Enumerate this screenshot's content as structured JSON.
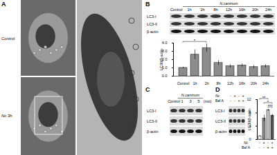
{
  "panels": {
    "A": {
      "letter": "A",
      "labels": [
        "Control",
        "Nc 3h"
      ]
    },
    "B": {
      "letter": "B",
      "blot": {
        "group_label": "N.caninum",
        "lanes": [
          "Control",
          "1h",
          "2h",
          "8h",
          "12h",
          "16h",
          "20h",
          "24h"
        ],
        "rows": [
          "LC3-I",
          "LC3-II",
          "β-actin"
        ]
      }
    },
    "C": {
      "letter": "C",
      "blot": {
        "group_label": "N.caninum",
        "lanes": [
          "Control",
          "1",
          "3",
          "5"
        ],
        "unit": "(moi)",
        "rows": [
          "LC3-I",
          "LC3-II",
          "β-actin"
        ]
      }
    },
    "D": {
      "letter": "D",
      "blot": {
        "conditions": [
          {
            "name": "Nc",
            "labels": [
              "-",
              "+",
              "-",
              "+"
            ]
          },
          {
            "name": "Baf A",
            "labels": [
              "-",
              "-",
              "+",
              "+"
            ]
          }
        ],
        "rows": [
          "LC3-I",
          "LC3-II",
          "β-actin"
        ]
      }
    }
  },
  "chart_data": [
    {
      "type": "bar",
      "panel": "B",
      "y_label": "LC3II/β-actin",
      "categories": [
        "Control",
        "1h",
        "2h",
        "8h",
        "12h",
        "16h",
        "20h",
        "24h"
      ],
      "values": [
        1,
        2.6,
        3.4,
        1.6,
        1.2,
        1.3,
        1.1,
        1.2
      ],
      "errors": [
        0.1,
        0.6,
        0.5,
        0.3,
        0.2,
        0.2,
        0.2,
        0.2
      ],
      "color": "#8c8c8c",
      "ylim": [
        0,
        4
      ],
      "yticks": [
        0,
        1,
        2,
        3,
        4
      ],
      "annotations": [
        {
          "text": "*",
          "from": 0,
          "to": 2
        }
      ]
    },
    {
      "type": "bar",
      "panel": "D",
      "y_label": "LC3II/β-actin",
      "categories": [
        null,
        null,
        null,
        null
      ],
      "conditions": [
        {
          "name": "Nc",
          "labels": [
            "-",
            "+",
            "-",
            "+"
          ]
        },
        {
          "name": "Baf A",
          "labels": [
            "-",
            "-",
            "+",
            "+"
          ]
        }
      ],
      "values": [
        1,
        6.3,
        8.8,
        7.2
      ],
      "errors": [
        0.2,
        1.0,
        0.3,
        0.4
      ],
      "colors": [
        "#ffffff",
        "#8c8c8c",
        "#c8c8c8",
        "#555555"
      ],
      "ylim": [
        0,
        12
      ],
      "yticks": [
        0,
        4,
        8,
        12
      ],
      "annotations": [
        {
          "text": "***",
          "from": 2,
          "to": 3
        },
        {
          "text": "*",
          "from": 1,
          "to": 3
        },
        {
          "text": "**",
          "from": 0,
          "to": 2
        }
      ]
    }
  ]
}
